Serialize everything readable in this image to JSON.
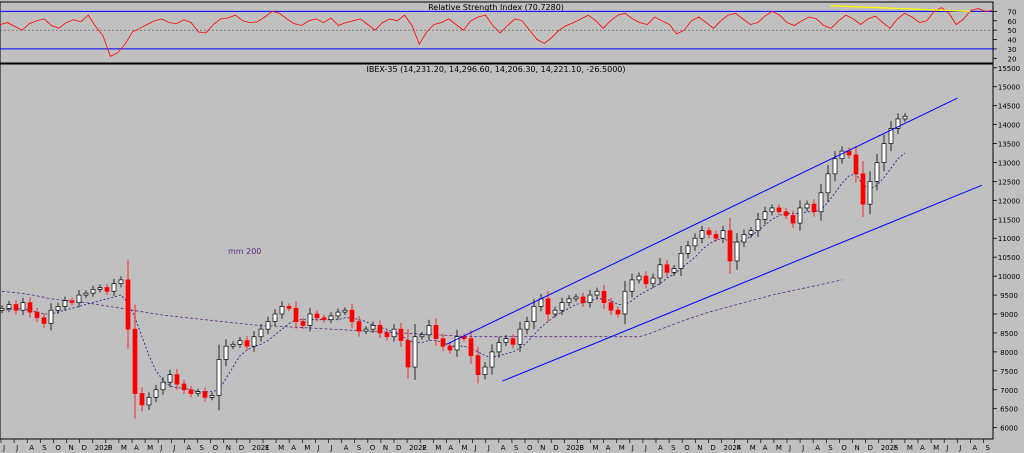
{
  "chart_data": [
    {
      "type": "line",
      "panel": "rsi",
      "title": "Relative Strength Index (70.7280)",
      "ylim": [
        15,
        80
      ],
      "yticks": [
        70,
        60,
        50,
        40,
        30,
        20
      ],
      "levels": [
        70,
        30
      ],
      "midline": 50,
      "series": [
        {
          "values": [
            56,
            58,
            54,
            50,
            57,
            60,
            62,
            55,
            52,
            58,
            61,
            59,
            66,
            54,
            44,
            22,
            26,
            35,
            48,
            52,
            56,
            60,
            62,
            58,
            57,
            61,
            58,
            48,
            47,
            56,
            62,
            63,
            66,
            60,
            58,
            59,
            64,
            70,
            68,
            62,
            57,
            55,
            60,
            62,
            58,
            63,
            55,
            58,
            60,
            62,
            56,
            50,
            58,
            62,
            60,
            66,
            55,
            35,
            48,
            56,
            58,
            62,
            56,
            50,
            60,
            64,
            66,
            55,
            47,
            55,
            62,
            60,
            50,
            40,
            36,
            42,
            50,
            55,
            58,
            62,
            66,
            60,
            52,
            60,
            66,
            68,
            62,
            58,
            56,
            64,
            60,
            56,
            46,
            50,
            60,
            64,
            58,
            52,
            60,
            66,
            68,
            62,
            56,
            58,
            65,
            70,
            66,
            58,
            55,
            60,
            64,
            62,
            55,
            52,
            60,
            66,
            62,
            56,
            62,
            65,
            58,
            52,
            62,
            68,
            64,
            58,
            60,
            70,
            74,
            68,
            56,
            62,
            71,
            73,
            70,
            71
          ]
        }
      ],
      "trendline": {
        "x": [
          111,
          136
        ],
        "y": [
          76,
          70
        ]
      }
    },
    {
      "type": "candlestick",
      "panel": "price",
      "title": "IBEX-35 (14,231.20, 14,296.60, 14,206.30, 14,221.10, -26.5000)",
      "ylim": [
        5700,
        15600
      ],
      "yticks": [
        15500,
        15000,
        14500,
        14000,
        13500,
        13000,
        12500,
        12000,
        11500,
        11000,
        10500,
        10000,
        9500,
        9000,
        8500,
        8000,
        7500,
        7000,
        6500,
        6000
      ],
      "x_labels": [
        "J",
        "J",
        "A",
        "S",
        "O",
        "N",
        "D",
        "2020",
        "F",
        "M",
        "A",
        "M",
        "J",
        "J",
        "A",
        "S",
        "O",
        "N",
        "D",
        "2021",
        "F",
        "M",
        "A",
        "M",
        "J",
        "J",
        "A",
        "S",
        "O",
        "N",
        "D",
        "2022",
        "F",
        "M",
        "A",
        "M",
        "J",
        "J",
        "A",
        "S",
        "O",
        "N",
        "D",
        "2023",
        "F",
        "M",
        "A",
        "M",
        "J",
        "J",
        "A",
        "S",
        "O",
        "N",
        "D",
        "2024",
        "F",
        "M",
        "A",
        "M",
        "J",
        "J",
        "A",
        "S",
        "O",
        "N",
        "D",
        "2025",
        "F",
        "M",
        "A",
        "M",
        "J",
        "J",
        "A",
        "S"
      ],
      "x_label_start": 1,
      "ma_label": "mm 200",
      "close": [
        9150,
        9250,
        9100,
        9300,
        9050,
        8900,
        8750,
        9100,
        9200,
        9350,
        9300,
        9500,
        9550,
        9650,
        9700,
        9600,
        9800,
        9900,
        8600,
        6900,
        6600,
        6800,
        7000,
        7200,
        7400,
        7150,
        7000,
        6900,
        6950,
        6800,
        6850,
        7800,
        8150,
        8200,
        8300,
        8150,
        8400,
        8600,
        8800,
        9000,
        9200,
        9150,
        8800,
        8700,
        9000,
        8900,
        8850,
        8950,
        9050,
        9100,
        8800,
        8550,
        8600,
        8700,
        8500,
        8400,
        8600,
        8300,
        7600,
        8400,
        8450,
        8700,
        8350,
        8150,
        8050,
        8400,
        8350,
        7900,
        7400,
        7600,
        8000,
        8250,
        8350,
        8200,
        8600,
        8800,
        9200,
        9400,
        9000,
        9100,
        9300,
        9400,
        9450,
        9300,
        9500,
        9600,
        9300,
        9100,
        9000,
        9600,
        9900,
        10000,
        9800,
        9950,
        10300,
        10100,
        10200,
        10600,
        10800,
        11000,
        11200,
        11100,
        11000,
        11200,
        10400,
        10900,
        11100,
        11200,
        11500,
        11700,
        11800,
        11700,
        11600,
        11400,
        11800,
        11900,
        11700,
        12200,
        12700,
        13100,
        13300,
        13200,
        12700,
        11900,
        12500,
        13000,
        13500,
        13900,
        14150,
        14221
      ],
      "ma200": [
        9600,
        9580,
        9560,
        9540,
        9510,
        9480,
        9440,
        9400,
        9380,
        9360,
        9340,
        9320,
        9300,
        9270,
        9240,
        9210,
        9180,
        9150,
        9120,
        9090,
        9060,
        9030,
        9000,
        8970,
        8950,
        8930,
        8910,
        8890,
        8870,
        8850,
        8830,
        8810,
        8790,
        8770,
        8750,
        8730,
        8710,
        8700,
        8690,
        8680,
        8670,
        8660,
        8650,
        8640,
        8630,
        8620,
        8610,
        8600,
        8590,
        8580,
        8570,
        8560,
        8550,
        8540,
        8530,
        8520,
        8510,
        8500,
        8490,
        8480,
        8470,
        8460,
        8450,
        8440,
        8430,
        8420,
        8410,
        8400,
        8400,
        8400,
        8400,
        8400,
        8400,
        8400,
        8400,
        8400,
        8400,
        8400,
        8400,
        8400,
        8400,
        8400,
        8400,
        8400,
        8400,
        8400,
        8400,
        8400,
        8400,
        8400,
        8400,
        8400,
        8450,
        8520,
        8590,
        8660,
        8730,
        8800,
        8870,
        8930,
        8990,
        9050,
        9100,
        9150,
        9200,
        9250,
        9300,
        9350,
        9400,
        9450,
        9500,
        9540,
        9580,
        9620,
        9660,
        9700,
        9740,
        9780,
        9820,
        9860,
        9900
      ],
      "ma50": [
        9100,
        9120,
        9140,
        9130,
        9100,
        9050,
        9000,
        9000,
        9050,
        9100,
        9150,
        9200,
        9250,
        9300,
        9350,
        9400,
        9450,
        9500,
        9300,
        8900,
        8400,
        7900,
        7500,
        7250,
        7100,
        7050,
        7050,
        7000,
        6950,
        6950,
        6950,
        7000,
        7300,
        7600,
        7900,
        8050,
        8150,
        8200,
        8300,
        8450,
        8600,
        8750,
        8850,
        8850,
        8850,
        8850,
        8850,
        8850,
        8850,
        8900,
        8900,
        8850,
        8800,
        8700,
        8650,
        8600,
        8500,
        8450,
        8300,
        8250,
        8250,
        8300,
        8300,
        8250,
        8150,
        8150,
        8150,
        8100,
        8000,
        7900,
        7850,
        7900,
        7950,
        8000,
        8100,
        8250,
        8450,
        8650,
        8800,
        8950,
        9050,
        9150,
        9250,
        9300,
        9350,
        9400,
        9400,
        9350,
        9250,
        9250,
        9350,
        9500,
        9600,
        9700,
        9800,
        9950,
        10050,
        10200,
        10350,
        10500,
        10700,
        10850,
        10950,
        11000,
        10900,
        10900,
        10950,
        11050,
        11200,
        11350,
        11500,
        11600,
        11650,
        11650,
        11650,
        11700,
        11700,
        11750,
        11950,
        12200,
        12450,
        12650,
        12700,
        12400,
        12300,
        12400,
        12600,
        12850,
        13100,
        13250
      ],
      "channel": {
        "upper": {
          "x": [
            63.5,
            136.5
          ],
          "y": [
            8200,
            14700
          ]
        },
        "lower": {
          "x": [
            71.5,
            140
          ],
          "y": [
            7230,
            12400
          ]
        }
      }
    }
  ]
}
